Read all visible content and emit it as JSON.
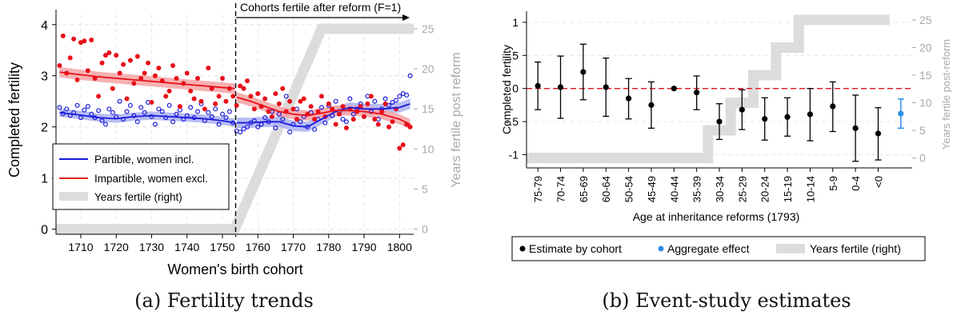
{
  "captions": {
    "a": "(a) Fertility trends",
    "b": "(b) Event-study estimates"
  },
  "chart_data": [
    {
      "type": "scatter",
      "panel": "a",
      "xlabel": "Women's birth cohort",
      "ylabel": "Completed fertility",
      "ylabel_right": "Years fertile post reform",
      "xlim": [
        1703,
        1804
      ],
      "ylim": [
        -0.1,
        4.2
      ],
      "ylim_right": [
        -0.65,
        26.8
      ],
      "xticks": [
        1710,
        1720,
        1730,
        1740,
        1750,
        1760,
        1770,
        1780,
        1790,
        1800
      ],
      "yticks": [
        0,
        1,
        2,
        3,
        4
      ],
      "yticks_right": [
        0,
        5,
        10,
        15,
        20,
        25
      ],
      "grid": true,
      "legend_position": "bottom-left",
      "reform_line_x": 1753.5,
      "reform_label": "Cohorts fertile after reform (F=1)",
      "colors": {
        "partible": "#1a1adb",
        "impartible": "#e8101a",
        "fertile": "#dcdcdc",
        "band_red": "#f5a3a6",
        "band_blue": "#aab0f0"
      },
      "series": [
        {
          "name": "Partible, women incl.",
          "kind": "scatter",
          "x": [
            1704,
            1705,
            1706,
            1707,
            1708,
            1709,
            1710,
            1711,
            1712,
            1713,
            1714,
            1715,
            1716,
            1717,
            1718,
            1719,
            1720,
            1721,
            1722,
            1723,
            1724,
            1725,
            1726,
            1727,
            1728,
            1729,
            1730,
            1731,
            1732,
            1733,
            1734,
            1735,
            1736,
            1737,
            1738,
            1739,
            1740,
            1741,
            1742,
            1743,
            1744,
            1745,
            1746,
            1747,
            1748,
            1749,
            1750,
            1751,
            1752,
            1753,
            1754,
            1755,
            1756,
            1757,
            1758,
            1759,
            1760,
            1761,
            1762,
            1763,
            1764,
            1765,
            1766,
            1767,
            1768,
            1769,
            1770,
            1771,
            1772,
            1773,
            1774,
            1775,
            1776,
            1777,
            1778,
            1779,
            1780,
            1781,
            1782,
            1783,
            1784,
            1785,
            1786,
            1787,
            1788,
            1789,
            1790,
            1791,
            1792,
            1793,
            1794,
            1795,
            1796,
            1797,
            1798,
            1799,
            1800,
            1801,
            1802,
            1803
          ],
          "y": [
            2.38,
            2.26,
            2.35,
            2.22,
            2.28,
            2.42,
            2.18,
            2.33,
            2.4,
            2.25,
            2.18,
            2.32,
            2.12,
            2.05,
            2.35,
            2.28,
            2.2,
            2.5,
            2.15,
            2.3,
            2.42,
            2.22,
            2.1,
            2.38,
            2.28,
            2.48,
            2.2,
            2.05,
            2.35,
            2.3,
            2.18,
            2.42,
            2.1,
            2.25,
            2.33,
            2.15,
            2.22,
            2.38,
            2.18,
            2.3,
            2.45,
            2.12,
            2.28,
            2.2,
            2.35,
            2.05,
            2.25,
            2.18,
            2.3,
            2.08,
            1.92,
            1.9,
            1.96,
            2.0,
            2.08,
            2.12,
            2.0,
            2.05,
            2.18,
            2.1,
            2.3,
            1.98,
            2.25,
            2.15,
            2.6,
            1.9,
            2.05,
            2.35,
            2.1,
            2.2,
            2.0,
            2.28,
            1.95,
            2.15,
            2.38,
            2.08,
            2.42,
            2.22,
            2.5,
            2.3,
            2.15,
            2.1,
            2.55,
            2.25,
            2.35,
            2.45,
            2.2,
            2.6,
            2.3,
            2.5,
            2.15,
            2.35,
            2.55,
            2.42,
            2.48,
            2.52,
            2.6,
            2.65,
            2.62,
            3.0
          ]
        },
        {
          "name": "Impartible, women excl.",
          "kind": "scatter",
          "x": [
            1704,
            1705,
            1706,
            1707,
            1708,
            1709,
            1710,
            1711,
            1712,
            1713,
            1714,
            1715,
            1716,
            1717,
            1718,
            1719,
            1720,
            1721,
            1722,
            1723,
            1724,
            1725,
            1726,
            1727,
            1728,
            1729,
            1730,
            1731,
            1732,
            1733,
            1734,
            1735,
            1736,
            1737,
            1738,
            1739,
            1740,
            1741,
            1742,
            1743,
            1744,
            1745,
            1746,
            1747,
            1748,
            1749,
            1750,
            1751,
            1752,
            1753,
            1754,
            1755,
            1756,
            1757,
            1758,
            1759,
            1760,
            1761,
            1762,
            1763,
            1764,
            1765,
            1766,
            1767,
            1768,
            1769,
            1770,
            1771,
            1772,
            1773,
            1774,
            1775,
            1776,
            1777,
            1778,
            1779,
            1780,
            1781,
            1782,
            1783,
            1784,
            1785,
            1786,
            1787,
            1788,
            1789,
            1790,
            1791,
            1792,
            1793,
            1794,
            1795,
            1796,
            1797,
            1798,
            1799,
            1800,
            1801,
            1802,
            1803
          ],
          "y": [
            3.2,
            3.78,
            3.05,
            3.35,
            3.72,
            2.92,
            3.65,
            3.68,
            3.1,
            3.7,
            2.95,
            2.6,
            3.25,
            3.4,
            3.45,
            2.75,
            3.4,
            3.05,
            3.22,
            2.55,
            3.3,
            2.85,
            3.38,
            2.95,
            3.05,
            3.25,
            2.48,
            3.0,
            3.15,
            2.9,
            2.6,
            2.7,
            3.2,
            2.95,
            2.4,
            2.85,
            3.05,
            2.7,
            2.55,
            2.95,
            2.5,
            2.35,
            3.15,
            2.75,
            2.45,
            2.6,
            2.95,
            2.5,
            2.75,
            2.6,
            2.42,
            2.8,
            2.75,
            2.9,
            2.6,
            2.35,
            2.65,
            2.4,
            2.55,
            2.3,
            2.2,
            2.65,
            2.45,
            2.75,
            2.3,
            2.5,
            2.35,
            2.15,
            2.5,
            2.55,
            2.25,
            2.4,
            2.15,
            2.3,
            2.6,
            2.2,
            2.45,
            2.35,
            2.05,
            2.25,
            2.4,
            1.98,
            2.35,
            2.15,
            2.3,
            2.4,
            2.2,
            2.45,
            2.6,
            2.15,
            2.05,
            2.3,
            2.45,
            2.0,
            2.1,
            2.35,
            1.58,
            1.65,
            2.05,
            2.0
          ]
        },
        {
          "name": "Partible, women incl.",
          "kind": "smooth",
          "x": [
            1704,
            1710,
            1715,
            1720,
            1725,
            1730,
            1735,
            1740,
            1745,
            1750,
            1753.5
          ],
          "y": [
            2.28,
            2.23,
            2.18,
            2.16,
            2.2,
            2.22,
            2.2,
            2.18,
            2.16,
            2.12,
            2.08
          ],
          "band": 0.08
        },
        {
          "name": "Partible, women incl.",
          "kind": "smooth",
          "x": [
            1754,
            1758,
            1762,
            1766,
            1770,
            1774,
            1778,
            1782,
            1786,
            1790,
            1795,
            1800,
            1803
          ],
          "y": [
            2.08,
            2.08,
            2.1,
            2.1,
            2.02,
            2.0,
            2.15,
            2.3,
            2.38,
            2.35,
            2.35,
            2.38,
            2.45
          ],
          "band": 0.1
        },
        {
          "name": "Impartible, women excl.",
          "kind": "smooth",
          "x": [
            1704,
            1710,
            1715,
            1720,
            1725,
            1730,
            1735,
            1740,
            1745,
            1750,
            1753.5
          ],
          "y": [
            3.07,
            3.02,
            2.98,
            2.95,
            2.92,
            2.89,
            2.86,
            2.83,
            2.8,
            2.77,
            2.75
          ],
          "band": 0.1
        },
        {
          "name": "Impartible, women excl.",
          "kind": "smooth",
          "x": [
            1754,
            1758,
            1762,
            1766,
            1770,
            1774,
            1778,
            1782,
            1786,
            1790,
            1795,
            1800,
            1803
          ],
          "y": [
            2.58,
            2.5,
            2.4,
            2.3,
            2.25,
            2.22,
            2.27,
            2.32,
            2.32,
            2.3,
            2.25,
            2.15,
            2.05
          ],
          "band": 0.1
        },
        {
          "name": "Years fertile (right)",
          "kind": "step",
          "axis": "right",
          "x": [
            1703,
            1753.5,
            1778,
            1804
          ],
          "y": [
            0,
            0,
            25,
            25
          ]
        }
      ]
    },
    {
      "type": "scatter",
      "panel": "b",
      "xlabel": "Age at inheritance reforms (1793)",
      "ylabel": "Completed fertility",
      "ylabel_right": "Years fertile post-reform",
      "categories": [
        "75-79",
        "70-74",
        "65-69",
        "60-64",
        "50-54",
        "45-49",
        "40-44",
        "35-39",
        "30-34",
        "25-29",
        "20-24",
        "15-19",
        "10-14",
        "5-9",
        "0-4",
        "<0",
        ""
      ],
      "ylim": [
        -1.2,
        1.12
      ],
      "ylim_right": [
        -1.8,
        26.0
      ],
      "yticks": [
        -1,
        -0.5,
        0,
        0.5,
        1
      ],
      "ytick_labels": [
        "-1",
        "-.5",
        "0",
        ".5",
        "1"
      ],
      "yticks_right": [
        0,
        5,
        10,
        15,
        20,
        25
      ],
      "zero_line": 0,
      "grid": true,
      "legend_position": "bottom",
      "colors": {
        "cohort": "#000000",
        "aggregate": "#2f8ee5",
        "fertile": "#dcdcdc",
        "zero_line": "#e8101a"
      },
      "series": [
        {
          "name": "Estimate by cohort",
          "estimates": [
            0.04,
            0.02,
            0.25,
            0.02,
            -0.15,
            -0.25,
            0.0,
            -0.06,
            -0.5,
            -0.32,
            -0.46,
            -0.43,
            -0.39,
            -0.27,
            -0.6,
            -0.68
          ],
          "ci_low": [
            -0.32,
            -0.45,
            -0.17,
            -0.42,
            -0.46,
            -0.6,
            0.0,
            -0.32,
            -0.77,
            -0.62,
            -0.78,
            -0.72,
            -0.79,
            -0.65,
            -1.1,
            -1.08
          ],
          "ci_high": [
            0.4,
            0.49,
            0.67,
            0.46,
            0.15,
            0.1,
            0.0,
            0.19,
            -0.23,
            -0.02,
            -0.14,
            -0.14,
            0.0,
            0.1,
            -0.1,
            -0.29
          ]
        },
        {
          "name": "Aggregate effect",
          "estimate": -0.38,
          "ci_low": -0.6,
          "ci_high": -0.16
        },
        {
          "name": "Years fertile (right)",
          "axis": "right",
          "values": [
            0,
            0,
            0,
            0,
            0,
            0,
            0,
            0,
            5,
            10,
            15,
            20,
            25,
            25,
            25,
            25
          ]
        }
      ]
    }
  ]
}
